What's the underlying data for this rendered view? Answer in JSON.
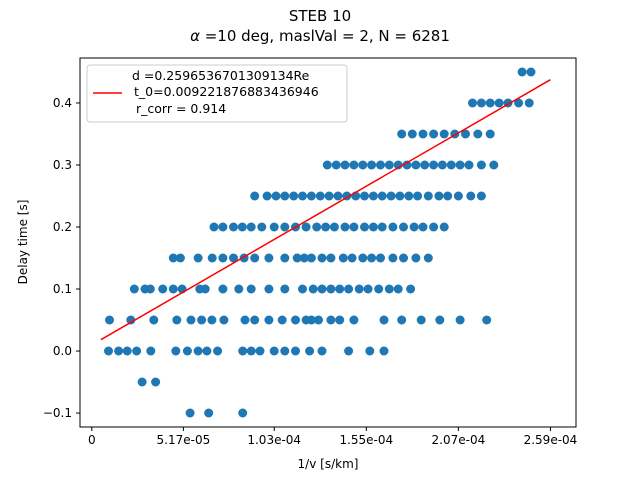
{
  "chart_data": {
    "type": "scatter",
    "title": "STEB 10",
    "subtitle_prefix": "α",
    "subtitle": " =10 deg, maslVal = 2, N = 6281",
    "xlabel": "1/v [s/km]",
    "ylabel": "Delay time [s]",
    "xlim": [
      -6.68e-06,
      0.00027343
    ],
    "ylim": [
      -0.1225,
      0.4725
    ],
    "xticks": [
      {
        "value": 0.0,
        "label": "0"
      },
      {
        "value": 5.17e-05,
        "label": "5.17e-05"
      },
      {
        "value": 0.000103,
        "label": "1.03e-04"
      },
      {
        "value": 0.000155,
        "label": "1.55e-04"
      },
      {
        "value": 0.000207,
        "label": "2.07e-04"
      },
      {
        "value": 0.000259,
        "label": "2.59e-04"
      }
    ],
    "yticks": [
      {
        "value": -0.1,
        "label": "−0.1"
      },
      {
        "value": 0.0,
        "label": "0.0"
      },
      {
        "value": 0.1,
        "label": "0.1"
      },
      {
        "value": 0.2,
        "label": "0.2"
      },
      {
        "value": 0.3,
        "label": "0.3"
      },
      {
        "value": 0.4,
        "label": "0.4"
      }
    ],
    "grid": false,
    "legend_position": "upper-left",
    "legend": {
      "line1": "d =0.2596536701309134Re",
      "line2": "t_0=0.009221876883436946",
      "line3": "r_corr = 0.914"
    },
    "series": [
      {
        "kind": "points",
        "color": "#1f77b4",
        "points": [
          [
            5.55e-05,
            -0.1
          ],
          [
            6.6e-05,
            -0.1
          ],
          [
            8.52e-05,
            -0.1
          ],
          [
            2.84e-05,
            -0.05
          ],
          [
            3.6e-05,
            -0.05
          ],
          [
            9.4e-06,
            0.0
          ],
          [
            1.51e-05,
            0.0
          ],
          [
            2e-05,
            0.0
          ],
          [
            2.53e-05,
            0.0
          ],
          [
            3.33e-05,
            0.0
          ],
          [
            4.74e-05,
            0.0
          ],
          [
            5.4e-05,
            0.0
          ],
          [
            6e-05,
            0.0
          ],
          [
            6.5e-05,
            0.0
          ],
          [
            7.1e-05,
            0.0
          ],
          [
            8.52e-05,
            0.0
          ],
          [
            9e-05,
            0.0
          ],
          [
            9.5e-05,
            0.0
          ],
          [
            0.000103,
            0.0
          ],
          [
            0.000109,
            0.0
          ],
          [
            0.000115,
            0.0
          ],
          [
            0.000123,
            0.0
          ],
          [
            0.00013,
            0.0
          ],
          [
            0.000145,
            0.0
          ],
          [
            0.000157,
            0.0
          ],
          [
            0.000165,
            0.0
          ],
          [
            1e-05,
            0.05
          ],
          [
            2.2e-05,
            0.05
          ],
          [
            3.5e-05,
            0.05
          ],
          [
            4.8e-05,
            0.05
          ],
          [
            5.6e-05,
            0.05
          ],
          [
            6.2e-05,
            0.05
          ],
          [
            6.78e-05,
            0.05
          ],
          [
            7.46e-05,
            0.05
          ],
          [
            8.65e-05,
            0.05
          ],
          [
            9.2e-05,
            0.05
          ],
          [
            0.0001,
            0.05
          ],
          [
            0.0001075,
            0.05
          ],
          [
            0.000115,
            0.05
          ],
          [
            0.000121,
            0.05
          ],
          [
            0.000124,
            0.05
          ],
          [
            0.000128,
            0.05
          ],
          [
            0.000135,
            0.05
          ],
          [
            0.00014,
            0.05
          ],
          [
            0.000148,
            0.05
          ],
          [
            0.000165,
            0.05
          ],
          [
            0.000175,
            0.05
          ],
          [
            0.000186,
            0.05
          ],
          [
            0.0001965,
            0.05
          ],
          [
            0.000208,
            0.05
          ],
          [
            0.000223,
            0.05
          ],
          [
            2.4e-05,
            0.1
          ],
          [
            3e-05,
            0.1
          ],
          [
            3.3e-05,
            0.1
          ],
          [
            4e-05,
            0.1
          ],
          [
            4.6e-05,
            0.1
          ],
          [
            5.1e-05,
            0.1
          ],
          [
            6.1e-05,
            0.1
          ],
          [
            6.4e-05,
            0.1
          ],
          [
            7.4e-05,
            0.1
          ],
          [
            8.3e-05,
            0.1
          ],
          [
            9e-05,
            0.1
          ],
          [
            0.0001,
            0.1
          ],
          [
            0.000109,
            0.1
          ],
          [
            0.000119,
            0.1
          ],
          [
            0.000125,
            0.1
          ],
          [
            0.00013,
            0.1
          ],
          [
            0.000135,
            0.1
          ],
          [
            0.00014,
            0.1
          ],
          [
            0.000145,
            0.1
          ],
          [
            0.000151,
            0.1
          ],
          [
            0.000156,
            0.1
          ],
          [
            0.000162,
            0.1
          ],
          [
            0.000168,
            0.1
          ],
          [
            0.000173,
            0.1
          ],
          [
            0.00018,
            0.1
          ],
          [
            4.6e-05,
            0.15
          ],
          [
            5e-05,
            0.15
          ],
          [
            6e-05,
            0.15
          ],
          [
            6.8e-05,
            0.15
          ],
          [
            7.4e-05,
            0.15
          ],
          [
            8e-05,
            0.15
          ],
          [
            8.6e-05,
            0.15
          ],
          [
            9.2e-05,
            0.15
          ],
          [
            0.0001,
            0.15
          ],
          [
            0.000109,
            0.15
          ],
          [
            0.000116,
            0.15
          ],
          [
            0.00012,
            0.15
          ],
          [
            0.000124,
            0.15
          ],
          [
            0.00013,
            0.15
          ],
          [
            0.000135,
            0.15
          ],
          [
            0.000142,
            0.15
          ],
          [
            0.000147,
            0.15
          ],
          [
            0.000153,
            0.15
          ],
          [
            0.000158,
            0.15
          ],
          [
            0.000163,
            0.15
          ],
          [
            0.00017,
            0.15
          ],
          [
            0.000176,
            0.15
          ],
          [
            0.000183,
            0.15
          ],
          [
            0.00019,
            0.15
          ],
          [
            6.9e-05,
            0.2
          ],
          [
            7.4e-05,
            0.2
          ],
          [
            8e-05,
            0.2
          ],
          [
            8.5e-05,
            0.2
          ],
          [
            9e-05,
            0.2
          ],
          [
            9.6e-05,
            0.2
          ],
          [
            0.000103,
            0.2
          ],
          [
            0.000109,
            0.2
          ],
          [
            0.000115,
            0.2
          ],
          [
            0.000121,
            0.2
          ],
          [
            0.000127,
            0.2
          ],
          [
            0.000132,
            0.2
          ],
          [
            0.000137,
            0.2
          ],
          [
            0.000143,
            0.2
          ],
          [
            0.000148,
            0.2
          ],
          [
            0.000154,
            0.2
          ],
          [
            0.000159,
            0.2
          ],
          [
            0.000164,
            0.2
          ],
          [
            0.00017,
            0.2
          ],
          [
            0.000176,
            0.2
          ],
          [
            0.000182,
            0.2
          ],
          [
            0.000187,
            0.2
          ],
          [
            0.000193,
            0.2
          ],
          [
            0.000199,
            0.2
          ],
          [
            9.2e-05,
            0.25
          ],
          [
            9.9e-05,
            0.25
          ],
          [
            0.000104,
            0.25
          ],
          [
            0.000109,
            0.25
          ],
          [
            0.000114,
            0.25
          ],
          [
            0.000119,
            0.25
          ],
          [
            0.000124,
            0.25
          ],
          [
            0.000129,
            0.25
          ],
          [
            0.000134,
            0.25
          ],
          [
            0.000139,
            0.25
          ],
          [
            0.000144,
            0.25
          ],
          [
            0.000149,
            0.25
          ],
          [
            0.000154,
            0.25
          ],
          [
            0.000159,
            0.25
          ],
          [
            0.000164,
            0.25
          ],
          [
            0.000169,
            0.25
          ],
          [
            0.000174,
            0.25
          ],
          [
            0.000179,
            0.25
          ],
          [
            0.000184,
            0.25
          ],
          [
            0.00019,
            0.25
          ],
          [
            0.000196,
            0.25
          ],
          [
            0.000201,
            0.25
          ],
          [
            0.000207,
            0.25
          ],
          [
            0.000214,
            0.25
          ],
          [
            0.00022,
            0.25
          ],
          [
            0.000133,
            0.3
          ],
          [
            0.000138,
            0.3
          ],
          [
            0.000143,
            0.3
          ],
          [
            0.000148,
            0.3
          ],
          [
            0.000153,
            0.3
          ],
          [
            0.000158,
            0.3
          ],
          [
            0.000163,
            0.3
          ],
          [
            0.000168,
            0.3
          ],
          [
            0.000173,
            0.3
          ],
          [
            0.000178,
            0.3
          ],
          [
            0.000183,
            0.3
          ],
          [
            0.000188,
            0.3
          ],
          [
            0.000193,
            0.3
          ],
          [
            0.000198,
            0.3
          ],
          [
            0.000203,
            0.3
          ],
          [
            0.000208,
            0.3
          ],
          [
            0.000213,
            0.3
          ],
          [
            0.00022,
            0.3
          ],
          [
            0.000227,
            0.3
          ],
          [
            0.000175,
            0.35
          ],
          [
            0.000181,
            0.35
          ],
          [
            0.000187,
            0.35
          ],
          [
            0.000193,
            0.35
          ],
          [
            0.000199,
            0.35
          ],
          [
            0.000205,
            0.35
          ],
          [
            0.000211,
            0.35
          ],
          [
            0.000218,
            0.35
          ],
          [
            0.000225,
            0.35
          ],
          [
            0.000215,
            0.4
          ],
          [
            0.00022,
            0.4
          ],
          [
            0.000225,
            0.4
          ],
          [
            0.00023,
            0.4
          ],
          [
            0.000235,
            0.4
          ],
          [
            0.000241,
            0.4
          ],
          [
            0.000247,
            0.4
          ],
          [
            0.000243,
            0.45
          ],
          [
            0.000248,
            0.45
          ]
        ]
      },
      {
        "kind": "line",
        "color": "#ff0000",
        "x": [
          5.14e-06,
          0.000259
        ],
        "y": [
          0.0183,
          0.4375
        ]
      }
    ]
  }
}
